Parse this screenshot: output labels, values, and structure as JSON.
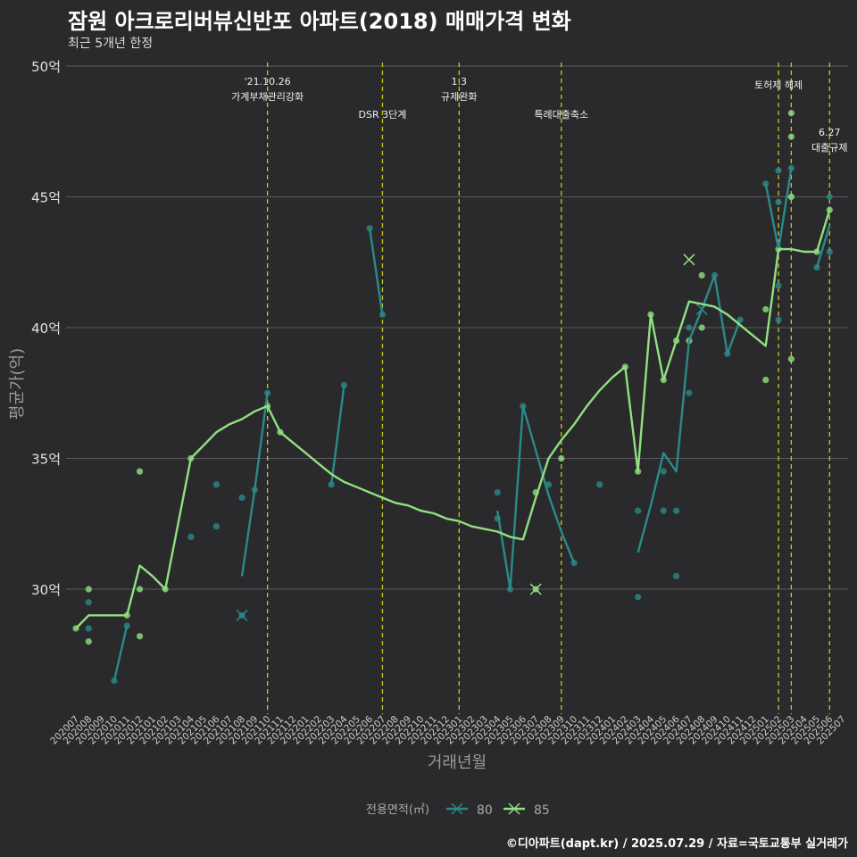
{
  "title": "잠원 아크로리버뷰신반포 아파트(2018) 매매가격 변화",
  "subtitle": "최근 5개년 한정",
  "caption": "©디아파트(dapt.kr) / 2025.07.29 / 자료=국토교통부 실거래가",
  "colors": {
    "background": "#2a2a2c",
    "grid": "#5a5a5c",
    "event_line": "#c8c81e",
    "series_80": "#2a8a8a",
    "series_85": "#90e080"
  },
  "chart_data": {
    "type": "line",
    "xlabel": "거래년월",
    "ylabel": "평균가(억)",
    "ylim": [
      25.5,
      50
    ],
    "yticks": [
      30,
      35,
      40,
      45,
      50
    ],
    "ytick_labels": [
      "30억",
      "35억",
      "40억",
      "45억",
      "50억"
    ],
    "categories": [
      "202007",
      "202008",
      "202009",
      "202010",
      "202011",
      "202012",
      "202101",
      "202102",
      "202103",
      "202104",
      "202105",
      "202106",
      "202107",
      "202108",
      "202109",
      "202110",
      "202111",
      "202112",
      "202201",
      "202202",
      "202203",
      "202204",
      "202205",
      "202206",
      "202207",
      "202208",
      "202209",
      "202210",
      "202211",
      "202212",
      "202301",
      "202302",
      "202303",
      "202304",
      "202305",
      "202306",
      "202307",
      "202308",
      "202309",
      "202310",
      "202311",
      "202312",
      "202401",
      "202402",
      "202403",
      "202404",
      "202405",
      "202406",
      "202407",
      "202408",
      "202409",
      "202410",
      "202411",
      "202412",
      "202501",
      "202502",
      "202503",
      "202504",
      "202505",
      "202506",
      "202507"
    ],
    "legend_title": "전용면적(㎡)",
    "legend_position": "bottom",
    "grid": true,
    "events": [
      {
        "x": "202110",
        "label_lines": [
          "'21.10.26",
          "가계부채관리강화"
        ],
        "row": 0
      },
      {
        "x": "202207",
        "label_lines": [
          "DSR 3단계"
        ],
        "row": 2
      },
      {
        "x": "202301",
        "label_lines": [
          "1.3",
          "규제완화"
        ],
        "row": 0
      },
      {
        "x": "202309",
        "label_lines": [
          "특례대출축소"
        ],
        "row": 2
      },
      {
        "x": "202502",
        "label_lines": [
          "토허제 해제"
        ],
        "row": 1
      },
      {
        "x": "202503",
        "label_lines": [],
        "row": 1
      },
      {
        "x": "202506",
        "label_lines": [
          "6.27",
          "대출규제"
        ],
        "row": 3
      }
    ],
    "series": [
      {
        "name": "80",
        "line": [
          [
            [
              "202010",
              26.5
            ],
            [
              "202011",
              28.6
            ]
          ],
          [
            [
              "202108",
              30.5
            ],
            [
              "202109",
              33.8
            ],
            [
              "202110",
              37.5
            ]
          ],
          [
            [
              "202203",
              34.0
            ],
            [
              "202204",
              37.8
            ]
          ],
          [
            [
              "202206",
              43.8
            ],
            [
              "202207",
              40.5
            ]
          ],
          [
            [
              "202304",
              33.0
            ],
            [
              "202305",
              30.0
            ],
            [
              "202306",
              37.0
            ],
            [
              "202307",
              35.3
            ],
            [
              "202308",
              33.6
            ],
            [
              "202309",
              32.2
            ],
            [
              "202310",
              31.0
            ]
          ],
          [
            [
              "202403",
              31.4
            ],
            [
              "202404",
              33.2
            ],
            [
              "202405",
              35.2
            ],
            [
              "202406",
              34.5
            ],
            [
              "202407",
              39.5
            ],
            [
              "202408",
              40.7
            ],
            [
              "202409",
              42.0
            ],
            [
              "202410",
              39.0
            ],
            [
              "202411",
              40.3
            ]
          ],
          [
            [
              "202501",
              45.5
            ],
            [
              "202502",
              43.0
            ],
            [
              "202503",
              46.1
            ]
          ],
          [
            [
              "202505",
              42.3
            ],
            [
              "202506",
              43.9
            ]
          ]
        ],
        "points": [
          [
            "202008",
            28.5
          ],
          [
            "202008",
            29.5
          ],
          [
            "202010",
            26.5
          ],
          [
            "202011",
            28.6
          ],
          [
            "202104",
            32.0
          ],
          [
            "202106",
            34.0
          ],
          [
            "202106",
            32.4
          ],
          [
            "202108",
            33.5
          ],
          [
            "202108",
            29.0
          ],
          [
            "202109",
            33.8
          ],
          [
            "202110",
            37.5
          ],
          [
            "202203",
            34.0
          ],
          [
            "202204",
            37.8
          ],
          [
            "202206",
            43.8
          ],
          [
            "202207",
            40.5
          ],
          [
            "202304",
            33.7
          ],
          [
            "202304",
            32.7
          ],
          [
            "202305",
            30.0
          ],
          [
            "202306",
            37.0
          ],
          [
            "202308",
            34.0
          ],
          [
            "202310",
            31.0
          ],
          [
            "202312",
            34.0
          ],
          [
            "202403",
            33.0
          ],
          [
            "202403",
            29.7
          ],
          [
            "202405",
            34.5
          ],
          [
            "202405",
            33.0
          ],
          [
            "202406",
            33.0
          ],
          [
            "202406",
            30.5
          ],
          [
            "202407",
            37.5
          ],
          [
            "202407",
            40.0
          ],
          [
            "202409",
            42.0
          ],
          [
            "202410",
            39.0
          ],
          [
            "202411",
            40.3
          ],
          [
            "202501",
            45.5
          ],
          [
            "202502",
            44.8
          ],
          [
            "202502",
            46.0
          ],
          [
            "202502",
            41.6
          ],
          [
            "202502",
            40.3
          ],
          [
            "202503",
            46.1
          ],
          [
            "202503",
            45.0
          ],
          [
            "202505",
            42.3
          ],
          [
            "202506",
            45.0
          ],
          [
            "202506",
            42.9
          ]
        ],
        "x_marks": [
          [
            "202108",
            29.0
          ],
          [
            "202408",
            40.7
          ]
        ]
      },
      {
        "name": "85",
        "line": [
          [
            [
              "202007",
              28.5
            ],
            [
              "202008",
              29.0
            ],
            [
              "202009",
              29.0
            ],
            [
              "202010",
              29.0
            ],
            [
              "202011",
              29.0
            ],
            [
              "202012",
              30.9
            ],
            [
              "202101",
              30.5
            ],
            [
              "202102",
              30.0
            ],
            [
              "202103",
              32.5
            ],
            [
              "202104",
              35.0
            ],
            [
              "202105",
              35.5
            ],
            [
              "202106",
              36.0
            ],
            [
              "202107",
              36.3
            ],
            [
              "202108",
              36.5
            ],
            [
              "202109",
              36.8
            ],
            [
              "202110",
              37.0
            ],
            [
              "202111",
              36.0
            ],
            [
              "202112",
              35.6
            ],
            [
              "202201",
              35.2
            ],
            [
              "202202",
              34.8
            ],
            [
              "202203",
              34.4
            ],
            [
              "202204",
              34.1
            ],
            [
              "202205",
              33.9
            ],
            [
              "202206",
              33.7
            ],
            [
              "202207",
              33.5
            ],
            [
              "202208",
              33.3
            ],
            [
              "202209",
              33.2
            ],
            [
              "202210",
              33.0
            ],
            [
              "202211",
              32.9
            ],
            [
              "202212",
              32.7
            ],
            [
              "202301",
              32.6
            ],
            [
              "202302",
              32.4
            ],
            [
              "202303",
              32.3
            ],
            [
              "202304",
              32.2
            ],
            [
              "202305",
              32.0
            ],
            [
              "202306",
              31.9
            ],
            [
              "202307",
              33.5
            ],
            [
              "202308",
              35.0
            ],
            [
              "202309",
              35.7
            ],
            [
              "202310",
              36.3
            ],
            [
              "202311",
              37.0
            ],
            [
              "202312",
              37.6
            ],
            [
              "202401",
              38.1
            ],
            [
              "202402",
              38.5
            ],
            [
              "202403",
              34.5
            ],
            [
              "202404",
              40.5
            ],
            [
              "202405",
              38.0
            ],
            [
              "202406",
              39.5
            ],
            [
              "202407",
              41.0
            ],
            [
              "202408",
              40.9
            ],
            [
              "202409",
              40.8
            ],
            [
              "202410",
              40.5
            ],
            [
              "202411",
              40.1
            ],
            [
              "202412",
              39.7
            ],
            [
              "202501",
              39.3
            ],
            [
              "202502",
              43.0
            ],
            [
              "202503",
              43.0
            ],
            [
              "202504",
              42.9
            ],
            [
              "202505",
              42.9
            ],
            [
              "202506",
              44.5
            ]
          ]
        ],
        "points": [
          [
            "202007",
            28.5
          ],
          [
            "202008",
            28.0
          ],
          [
            "202008",
            30.0
          ],
          [
            "202011",
            29.0
          ],
          [
            "202012",
            34.5
          ],
          [
            "202012",
            30.0
          ],
          [
            "202012",
            28.2
          ],
          [
            "202102",
            30.0
          ],
          [
            "202104",
            35.0
          ],
          [
            "202110",
            37.0
          ],
          [
            "202111",
            36.0
          ],
          [
            "202307",
            33.7
          ],
          [
            "202307",
            30.0
          ],
          [
            "202309",
            35.0
          ],
          [
            "202402",
            38.5
          ],
          [
            "202403",
            34.5
          ],
          [
            "202404",
            40.5
          ],
          [
            "202405",
            38.0
          ],
          [
            "202406",
            39.5
          ],
          [
            "202407",
            39.5
          ],
          [
            "202408",
            42.0
          ],
          [
            "202408",
            40.0
          ],
          [
            "202501",
            40.7
          ],
          [
            "202501",
            38.0
          ],
          [
            "202502",
            43.0
          ],
          [
            "202503",
            48.2
          ],
          [
            "202503",
            47.3
          ],
          [
            "202503",
            45.0
          ],
          [
            "202503",
            38.8
          ],
          [
            "202505",
            42.9
          ],
          [
            "202506",
            44.5
          ]
        ],
        "x_marks": [
          [
            "202307",
            30.0
          ],
          [
            "202407",
            42.6
          ]
        ]
      }
    ]
  }
}
